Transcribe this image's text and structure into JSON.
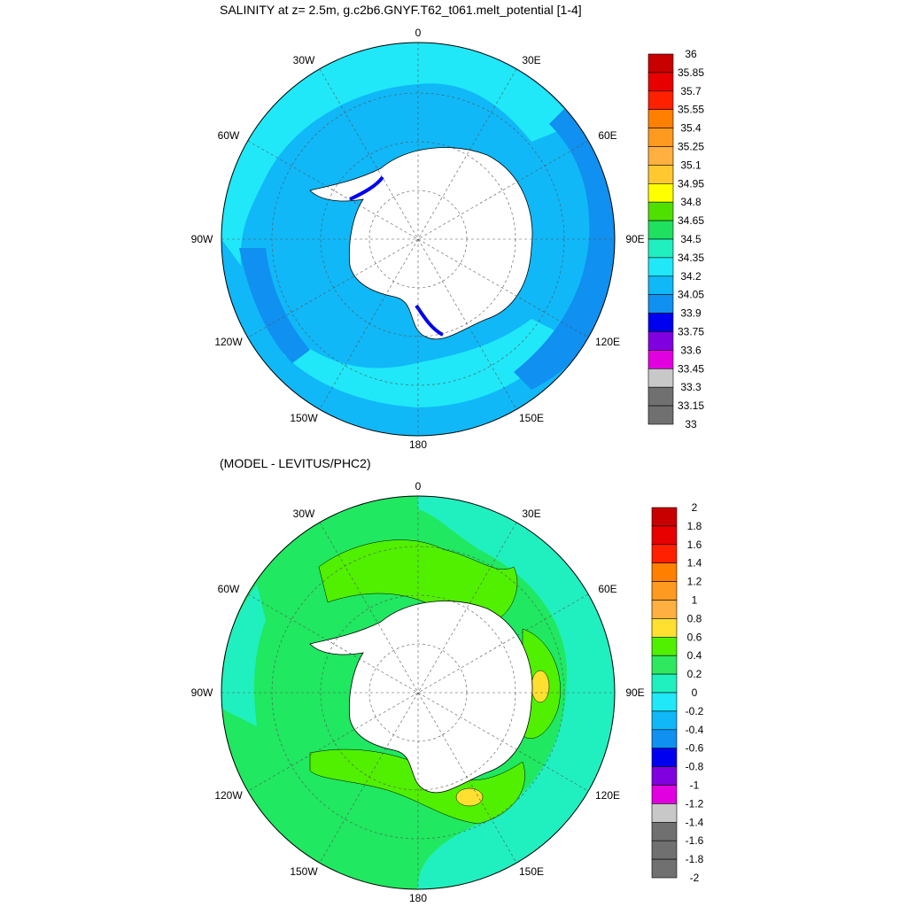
{
  "panels": [
    {
      "title": "SALINITY at z=   2.5m, g.c2b6.GNYF.T62_t061.melt_potential [1-4]",
      "colorbar": {
        "labels": [
          "36",
          "35.85",
          "35.7",
          "35.55",
          "35.4",
          "35.25",
          "35.1",
          "34.95",
          "34.8",
          "34.65",
          "34.5",
          "34.35",
          "34.2",
          "34.05",
          "33.9",
          "33.75",
          "33.6",
          "33.45",
          "33.3",
          "33.15",
          "33"
        ],
        "colors": [
          "#c80000",
          "#e80000",
          "#ff2000",
          "#ff8000",
          "#ff9a20",
          "#ffb040",
          "#ffc830",
          "#ffff00",
          "#50e000",
          "#20e060",
          "#20f0c0",
          "#20e8f8",
          "#10b8f8",
          "#1090f0",
          "#0000f0",
          "#8000e0",
          "#e000e0",
          "#c8c8c8",
          "#707070"
        ]
      }
    },
    {
      "title": "(MODEL - LEVITUS/PHC2)",
      "colorbar": {
        "labels": [
          "2",
          "1.8",
          "1.6",
          "1.4",
          "1.2",
          "1",
          "0.8",
          "0.6",
          "0.4",
          "0.2",
          "0",
          "-0.2",
          "-0.4",
          "-0.6",
          "-0.8",
          "-1",
          "-1.2",
          "-1.4",
          "-1.6",
          "-1.8",
          "-2"
        ],
        "colors": [
          "#c80000",
          "#e80000",
          "#ff2000",
          "#ff8000",
          "#ff9a20",
          "#ffb040",
          "#ffe030",
          "#50f000",
          "#30e860",
          "#20f0c0",
          "#20e8f8",
          "#10b8f8",
          "#1090f0",
          "#0000f0",
          "#8000e0",
          "#e000e0",
          "#c8c8c8",
          "#707070"
        ]
      }
    }
  ],
  "lon_labels": [
    "0",
    "30E",
    "60E",
    "90E",
    "120E",
    "150E",
    "180",
    "150W",
    "120W",
    "90W",
    "60W",
    "30W"
  ]
}
